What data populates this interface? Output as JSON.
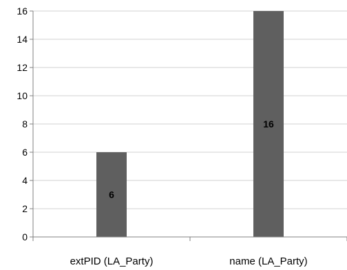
{
  "chart_data": {
    "type": "bar",
    "categories": [
      "extPID (LA_Party)",
      "name (LA_Party)"
    ],
    "values": [
      6,
      16
    ],
    "data_labels": [
      "6",
      "16"
    ],
    "ylim": [
      0,
      16
    ],
    "yticks": [
      "0",
      "2",
      "4",
      "6",
      "8",
      "10",
      "12",
      "14",
      "16"
    ],
    "grid": true,
    "legend": "none",
    "bar_color": "#5f5f5f",
    "grid_color": "#d0d0d0"
  }
}
